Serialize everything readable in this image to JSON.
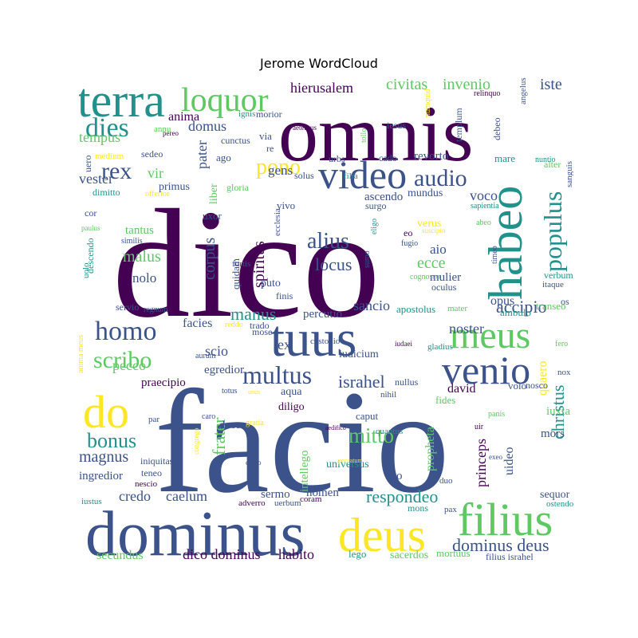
{
  "chart_data": {
    "type": "wordcloud",
    "title": "Jerome WordCloud",
    "colormap": [
      "#440154",
      "#3b528b",
      "#21918c",
      "#5ec962",
      "#fde725"
    ],
    "words": [
      {
        "text": "dico",
        "weight": 1.0
      },
      {
        "text": "facio",
        "weight": 0.98
      },
      {
        "text": "omnis",
        "weight": 0.62
      },
      {
        "text": "dominus",
        "weight": 0.5
      },
      {
        "text": "terra",
        "weight": 0.36
      },
      {
        "text": "tuus",
        "weight": 0.4
      },
      {
        "text": "habeo",
        "weight": 0.38
      },
      {
        "text": "video",
        "weight": 0.32
      },
      {
        "text": "meus",
        "weight": 0.33
      },
      {
        "text": "venio",
        "weight": 0.35
      },
      {
        "text": "deus",
        "weight": 0.38
      },
      {
        "text": "filius",
        "weight": 0.4
      },
      {
        "text": "do",
        "weight": 0.38
      },
      {
        "text": "loquor",
        "weight": 0.3
      },
      {
        "text": "homo",
        "weight": 0.25
      },
      {
        "text": "dies",
        "weight": 0.25
      },
      {
        "text": "multus",
        "weight": 0.24
      },
      {
        "text": "audio",
        "weight": 0.22
      },
      {
        "text": "populus",
        "weight": 0.24
      },
      {
        "text": "rex",
        "weight": 0.2
      },
      {
        "text": "pono",
        "weight": 0.19
      },
      {
        "text": "alius",
        "weight": 0.19
      },
      {
        "text": "scribo",
        "weight": 0.2
      },
      {
        "text": "bonus",
        "weight": 0.17
      },
      {
        "text": "mitto",
        "weight": 0.17
      },
      {
        "text": "dominus deus",
        "weight": 0.15
      },
      {
        "text": "respondeo",
        "weight": 0.14
      },
      {
        "text": "christus",
        "weight": 0.14
      },
      {
        "text": "israhel",
        "weight": 0.14
      },
      {
        "text": "locus",
        "weight": 0.14
      },
      {
        "text": "accipio",
        "weight": 0.14
      },
      {
        "text": "manus",
        "weight": 0.13
      },
      {
        "text": "magnus",
        "weight": 0.13
      },
      {
        "text": "frater",
        "weight": 0.13
      },
      {
        "text": "princeps",
        "weight": 0.11
      },
      {
        "text": "propheta",
        "weight": 0.11
      },
      {
        "text": "spiritus",
        "weight": 0.12
      },
      {
        "text": "corpus",
        "weight": 0.12
      },
      {
        "text": "malus",
        "weight": 0.12
      },
      {
        "text": "civitas",
        "weight": 0.12
      },
      {
        "text": "invenio",
        "weight": 0.12
      },
      {
        "text": "noster",
        "weight": 0.11
      },
      {
        "text": "sancio",
        "weight": 0.11
      },
      {
        "text": "ecce",
        "weight": 0.11
      },
      {
        "text": "aio",
        "weight": 0.11
      },
      {
        "text": "pecco",
        "weight": 0.1
      },
      {
        "text": "scio",
        "weight": 0.11
      },
      {
        "text": "hierusalem",
        "weight": 0.1
      },
      {
        "text": "domus",
        "weight": 0.1
      },
      {
        "text": "iste",
        "weight": 0.1
      },
      {
        "text": "vir",
        "weight": 0.1
      },
      {
        "text": "tempus",
        "weight": 0.1
      },
      {
        "text": "vester",
        "weight": 0.1
      },
      {
        "text": "gens",
        "weight": 0.1
      },
      {
        "text": "nolo",
        "weight": 0.1
      },
      {
        "text": "facies",
        "weight": 0.1
      },
      {
        "text": "voco",
        "weight": 0.1
      },
      {
        "text": "credo",
        "weight": 0.1
      },
      {
        "text": "caelum",
        "weight": 0.1
      },
      {
        "text": "secundus",
        "weight": 0.1
      },
      {
        "text": "dico dominus",
        "weight": 0.11
      },
      {
        "text": "habito",
        "weight": 0.11
      },
      {
        "text": "lex",
        "weight": 0.09
      },
      {
        "text": "david",
        "weight": 0.09
      },
      {
        "text": "anima",
        "weight": 0.09
      },
      {
        "text": "mulier",
        "weight": 0.09
      },
      {
        "text": "opus",
        "weight": 0.09
      },
      {
        "text": "ascendo",
        "weight": 0.08
      },
      {
        "text": "mundus",
        "weight": 0.08
      },
      {
        "text": "revorto",
        "weight": 0.08
      },
      {
        "text": "pater",
        "weight": 0.09
      },
      {
        "text": "tantus",
        "weight": 0.08
      },
      {
        "text": "sermo",
        "weight": 0.08
      },
      {
        "text": "nomen",
        "weight": 0.08
      },
      {
        "text": "intellego",
        "weight": 0.08
      },
      {
        "text": "universus",
        "weight": 0.08
      },
      {
        "text": "sto",
        "weight": 0.08
      },
      {
        "text": "quaero",
        "weight": 0.08
      },
      {
        "text": "uideo",
        "weight": 0.08
      },
      {
        "text": "mors",
        "weight": 0.08
      },
      {
        "text": "ingredior",
        "weight": 0.07
      },
      {
        "text": "egredior",
        "weight": 0.07
      },
      {
        "text": "praecipio",
        "weight": 0.07
      },
      {
        "text": "iudicium",
        "weight": 0.07
      },
      {
        "text": "sacerdos",
        "weight": 0.07
      },
      {
        "text": "mortuus",
        "weight": 0.07
      },
      {
        "text": "filius israhel",
        "weight": 0.07
      },
      {
        "text": "lego",
        "weight": 0.07
      },
      {
        "text": "sequor",
        "weight": 0.07
      },
      {
        "text": "ostendo",
        "weight": 0.06
      },
      {
        "text": "iuxta",
        "weight": 0.07
      },
      {
        "text": "nosco",
        "weight": 0.07
      },
      {
        "text": "volo",
        "weight": 0.07
      },
      {
        "text": "fides",
        "weight": 0.06
      },
      {
        "text": "caput",
        "weight": 0.07
      },
      {
        "text": "quantus",
        "weight": 0.06
      },
      {
        "text": "aqua",
        "weight": 0.07
      },
      {
        "text": "diligo",
        "weight": 0.07
      },
      {
        "text": "doceo",
        "weight": 0.07
      },
      {
        "text": "teneo",
        "weight": 0.06
      },
      {
        "text": "iniquitas",
        "weight": 0.06
      },
      {
        "text": "nescio",
        "weight": 0.05
      },
      {
        "text": "iustus",
        "weight": 0.05
      },
      {
        "text": "adverro",
        "weight": 0.05
      },
      {
        "text": "uerbum",
        "weight": 0.05
      },
      {
        "text": "coram",
        "weight": 0.05
      },
      {
        "text": "mons",
        "weight": 0.06
      },
      {
        "text": "pax",
        "weight": 0.05
      },
      {
        "text": "duo",
        "weight": 0.05
      },
      {
        "text": "nihil",
        "weight": 0.05
      },
      {
        "text": "nullus",
        "weight": 0.06
      },
      {
        "text": "custodio",
        "weight": 0.05
      },
      {
        "text": "mose",
        "weight": 0.05
      },
      {
        "text": "trado",
        "weight": 0.06
      },
      {
        "text": "percutio",
        "weight": 0.07
      },
      {
        "text": "apostolus",
        "weight": 0.06
      },
      {
        "text": "ambulo",
        "weight": 0.06
      },
      {
        "text": "transeo",
        "weight": 0.06
      },
      {
        "text": "verbum",
        "weight": 0.06
      },
      {
        "text": "itaque",
        "weight": 0.05
      },
      {
        "text": "os",
        "weight": 0.06
      },
      {
        "text": "mater",
        "weight": 0.05
      },
      {
        "text": "gladius",
        "weight": 0.05
      },
      {
        "text": "iudaei",
        "weight": 0.04
      },
      {
        "text": "oculus",
        "weight": 0.05
      },
      {
        "text": "cognosco",
        "weight": 0.04
      },
      {
        "text": "fugio",
        "weight": 0.05
      },
      {
        "text": "eo",
        "weight": 0.06
      },
      {
        "text": "verus",
        "weight": 0.07
      },
      {
        "text": "suscipio",
        "weight": 0.04
      },
      {
        "text": "sumo",
        "weight": 0.04
      },
      {
        "text": "eligo",
        "weight": 0.04
      },
      {
        "text": "surgo",
        "weight": 0.05
      },
      {
        "text": "filia",
        "weight": 0.05
      },
      {
        "text": "solus",
        "weight": 0.05
      },
      {
        "text": "urbs",
        "weight": 0.05
      },
      {
        "text": "cado",
        "weight": 0.05
      },
      {
        "text": "vivo",
        "weight": 0.06
      },
      {
        "text": "ecclesia",
        "weight": 0.05
      },
      {
        "text": "quidam",
        "weight": 0.06
      },
      {
        "text": "fortis",
        "weight": 0.05
      },
      {
        "text": "finis",
        "weight": 0.05
      },
      {
        "text": "puto",
        "weight": 0.06
      },
      {
        "text": "uxor",
        "weight": 0.06
      },
      {
        "text": "gloria",
        "weight": 0.06
      },
      {
        "text": "liber",
        "weight": 0.06
      },
      {
        "text": "ago",
        "weight": 0.06
      },
      {
        "text": "re",
        "weight": 0.05
      },
      {
        "text": "cunctus",
        "weight": 0.06
      },
      {
        "text": "via",
        "weight": 0.06
      },
      {
        "text": "morior",
        "weight": 0.06
      },
      {
        "text": "annu",
        "weight": 0.05
      },
      {
        "text": "pereo",
        "weight": 0.04
      },
      {
        "text": "medium",
        "weight": 0.04
      },
      {
        "text": "sedeo",
        "weight": 0.05
      },
      {
        "text": "uero",
        "weight": 0.05
      },
      {
        "text": "primus",
        "weight": 0.06
      },
      {
        "text": "dimitto",
        "weight": 0.05
      },
      {
        "text": "offertor",
        "weight": 0.04
      },
      {
        "text": "cor",
        "weight": 0.05
      },
      {
        "text": "paulus",
        "weight": 0.04
      },
      {
        "text": "similis",
        "weight": 0.04
      },
      {
        "text": "descendo",
        "weight": 0.05
      },
      {
        "text": "uolo",
        "weight": 0.05
      },
      {
        "text": "servio",
        "weight": 0.05
      },
      {
        "text": "regnum",
        "weight": 0.04
      },
      {
        "text": "reddo",
        "weight": 0.04
      },
      {
        "text": "aurum",
        "weight": 0.04
      },
      {
        "text": "totus",
        "weight": 0.04
      },
      {
        "text": "unus",
        "weight": 0.03
      },
      {
        "text": "par",
        "weight": 0.05
      },
      {
        "text": "caro",
        "weight": 0.04
      },
      {
        "text": "gratia",
        "weight": 0.04
      },
      {
        "text": "congrego",
        "weight": 0.04
      },
      {
        "text": "capio",
        "weight": 0.04
      },
      {
        "text": "aedifico",
        "weight": 0.04
      },
      {
        "text": "peccatum",
        "weight": 0.04
      },
      {
        "text": "panis",
        "weight": 0.04
      },
      {
        "text": "uir",
        "weight": 0.04
      },
      {
        "text": "exeo",
        "weight": 0.04
      },
      {
        "text": "nox",
        "weight": 0.05
      },
      {
        "text": "fero",
        "weight": 0.04
      },
      {
        "text": "anima meus",
        "weight": 0.04
      },
      {
        "text": "timeo",
        "weight": 0.04
      },
      {
        "text": "abeo",
        "weight": 0.04
      },
      {
        "text": "sapientia",
        "weight": 0.04
      },
      {
        "text": "sanguis",
        "weight": 0.05
      },
      {
        "text": "alter",
        "weight": 0.05
      },
      {
        "text": "nuntio",
        "weight": 0.04
      },
      {
        "text": "mare",
        "weight": 0.05
      },
      {
        "text": "debeo",
        "weight": 0.05
      },
      {
        "text": "templum",
        "weight": 0.05
      },
      {
        "text": "iesus",
        "weight": 0.05
      },
      {
        "text": "tollo",
        "weight": 0.04
      },
      {
        "text": "ignis",
        "weight": 0.05
      },
      {
        "text": "aeternus",
        "weight": 0.04
      },
      {
        "text": "relinquo",
        "weight": 0.04
      },
      {
        "text": "angelus",
        "weight": 0.05
      },
      {
        "text": "numquid",
        "weight": 0.04
      },
      {
        "text": "lapis",
        "weight": 0.04
      },
      {
        "text": "terrae",
        "weight": 0.04
      }
    ]
  }
}
